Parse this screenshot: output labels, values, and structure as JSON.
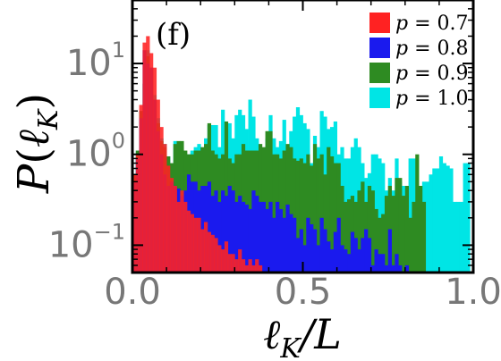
{
  "chart_data": {
    "type": "bar",
    "panel_label": "(f)",
    "xlabel_parts": {
      "l": "ℓ",
      "sub": "K",
      "rest": "/L"
    },
    "ylabel_parts": {
      "p": "P",
      "open": "(",
      "l": "ℓ",
      "sub": "K",
      "close": ")"
    },
    "xlim": [
      0,
      1
    ],
    "ylim": [
      0.05,
      50
    ],
    "log_y": true,
    "grid": false,
    "legend_position": "top-right",
    "x_ticks": [
      {
        "value": 0.0,
        "label": "0.0"
      },
      {
        "value": 0.5,
        "label": "0.5"
      },
      {
        "value": 1.0,
        "label": "1.0"
      }
    ],
    "y_ticks": [
      {
        "value": 0.1,
        "label": "10",
        "exp": "−1"
      },
      {
        "value": 1,
        "label": "10",
        "exp": "0"
      },
      {
        "value": 10,
        "label": "10",
        "exp": "1"
      }
    ],
    "bin_width": 0.01,
    "series": [
      {
        "name": "p = 1.0",
        "legend_p": "p",
        "legend_value": " = 1.0",
        "color": "#00e5e5",
        "start": 0.0,
        "values": [
          0.6,
          1.1,
          3.0,
          6.0,
          14,
          9.0,
          4.5,
          2.5,
          1.5,
          1.3,
          0.95,
          0.7,
          1.4,
          1.2,
          0.9,
          0.8,
          1.0,
          1.1,
          1.2,
          1.3,
          1.0,
          1.5,
          2.1,
          2.1,
          2.1,
          1.2,
          3.1,
          2.2,
          2.2,
          1.5,
          2.7,
          3.1,
          2.7,
          1.9,
          4.0,
          2.6,
          1.5,
          1.2,
          1.1,
          1.5,
          2.7,
          1.5,
          1.2,
          1.4,
          2.4,
          1.2,
          1.8,
          2.6,
          3.3,
          2.7,
          2.2,
          1.9,
          0.8,
          1.6,
          1.2,
          3.0,
          2.6,
          1.9,
          2.0,
          2.3,
          1.0,
          1.2,
          0.9,
          0.9,
          1.2,
          1.5,
          1.2,
          0.8,
          0.55,
          0.62,
          1.0,
          1.0,
          0.9,
          0.8,
          0.4,
          0.55,
          0.4,
          0.9,
          0.5,
          0.45,
          0.3,
          0.9,
          0.9,
          0.35,
          0.3,
          0.5,
          0.5,
          0.6,
          0.7,
          0.7,
          0.95,
          0.8,
          0.75,
          0.7,
          0.3,
          0.3,
          0.3,
          0.8,
          0.8
        ]
      },
      {
        "name": "p = 0.9",
        "legend_p": "p",
        "legend_value": " = 0.9",
        "color": "#2e8b22",
        "start": 0.0,
        "values": [
          0.6,
          1.1,
          3.0,
          6.0,
          12,
          8.0,
          4.0,
          2.2,
          1.4,
          1.2,
          0.95,
          0.8,
          1.3,
          1.4,
          1.4,
          1.1,
          1.0,
          1.0,
          1.1,
          1.1,
          1.2,
          1.3,
          2.2,
          1.1,
          1.0,
          0.9,
          1.0,
          2.3,
          0.9,
          0.8,
          1.0,
          1.0,
          1.3,
          1.1,
          1.1,
          1.1,
          1.1,
          1.3,
          1.2,
          1.8,
          1.8,
          1.0,
          1.0,
          0.9,
          1.1,
          1.3,
          1.2,
          0.9,
          0.85,
          0.9,
          0.8,
          1.0,
          0.75,
          1.3,
          0.9,
          1.0,
          0.6,
          1.2,
          0.95,
          0.8,
          0.8,
          0.45,
          0.3,
          0.32,
          0.35,
          0.3,
          0.4,
          0.5,
          0.3,
          0.45,
          0.4,
          0.25,
          0.2,
          0.22,
          0.35,
          0.45,
          0.35,
          0.55,
          0.55,
          0.35,
          0.45,
          0.2,
          0.3,
          1.0,
          0.45,
          0.3,
          0.0,
          0.0
        ]
      },
      {
        "name": "p = 0.8",
        "legend_p": "p",
        "legend_value": " = 0.8",
        "color": "#1a1aee",
        "start": 0.0,
        "values": [
          0.5,
          0.9,
          2.5,
          14,
          10,
          9.0,
          4.0,
          1.8,
          1.0,
          0.6,
          0.45,
          0.5,
          0.45,
          0.42,
          0.35,
          0.4,
          0.6,
          0.5,
          0.5,
          0.4,
          0.45,
          0.45,
          0.5,
          0.35,
          0.4,
          0.3,
          0.4,
          0.35,
          0.45,
          0.4,
          0.3,
          0.35,
          0.3,
          0.28,
          0.25,
          0.4,
          0.35,
          0.3,
          0.3,
          0.25,
          0.3,
          0.2,
          0.3,
          0.25,
          0.2,
          0.28,
          0.22,
          0.2,
          0.12,
          0.15,
          0.1,
          0.2,
          0.17,
          0.15,
          0.1,
          0.2,
          0.15,
          0.11,
          0.09,
          0.14,
          0.2,
          0.1,
          0.09,
          0.08,
          0.14,
          0.12,
          0.09,
          0.12,
          0.15,
          0.12,
          0.06,
          0.09,
          0.08,
          0.08,
          0.06,
          0.15,
          0.06,
          0.08,
          0.06,
          0.0,
          0.06
        ]
      },
      {
        "name": "p = 0.7",
        "legend_p": "p",
        "legend_value": " = 0.7",
        "color": "#ff2222",
        "start": 0.0,
        "values": [
          0.6,
          1.0,
          3.5,
          17,
          20,
          13,
          9.0,
          4.0,
          2.0,
          1.3,
          0.75,
          0.55,
          0.45,
          0.3,
          0.4,
          0.3,
          0.24,
          0.22,
          0.2,
          0.2,
          0.15,
          0.18,
          0.14,
          0.13,
          0.12,
          0.1,
          0.09,
          0.11,
          0.08,
          0.08,
          0.07,
          0.09,
          0.07,
          0.06,
          0.07,
          0.06,
          0.07,
          0.06
        ]
      }
    ]
  }
}
